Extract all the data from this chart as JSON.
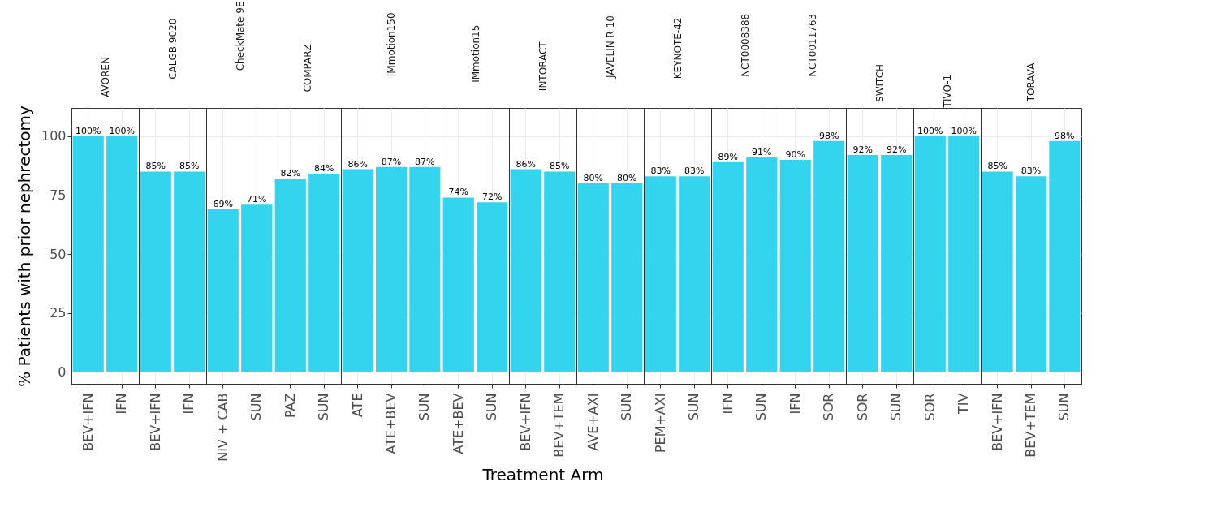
{
  "chart_data": [
    {
      "type": "bar",
      "title": "AVOREN",
      "categories": [
        "BEV+IFN",
        "IFN"
      ],
      "values": [
        100,
        100
      ],
      "value_labels": [
        "100%",
        "100%"
      ],
      "color": "#33d4ee",
      "ylim": [
        -5,
        112
      ],
      "yticks": [
        0,
        25,
        50,
        75,
        100
      ],
      "grid": true,
      "ylabel": "% Patients with prior nephrectomy"
    },
    {
      "type": "bar",
      "title": "CALGB 9020",
      "categories": [
        "BEV+IFN",
        "IFN"
      ],
      "values": [
        85,
        85
      ],
      "value_labels": [
        "85%",
        "85%"
      ],
      "color": "#33d4ee",
      "ylim": [
        -5,
        112
      ],
      "yticks": [
        0,
        25,
        50,
        75,
        100
      ],
      "grid": true,
      "tick_labels": "x"
    },
    {
      "type": "bar",
      "title": "CheckMate 9E",
      "categories": [
        "NIV + CAB",
        "SUN"
      ],
      "values": [
        69,
        71
      ],
      "value_labels": [
        "69%",
        "71%"
      ],
      "color": "#33d4ee",
      "ylim": [
        -5,
        112
      ],
      "yticks": [
        0,
        25,
        50,
        75,
        100
      ],
      "grid": true,
      "tick_labels": "x"
    },
    {
      "type": "bar",
      "title": "COMPARZ",
      "categories": [
        "PAZ",
        "SUN"
      ],
      "values": [
        82,
        84
      ],
      "value_labels": [
        "82%",
        "84%"
      ],
      "color": "#33d4ee",
      "ylim": [
        -5,
        112
      ],
      "yticks": [
        0,
        25,
        50,
        75,
        100
      ],
      "grid": true,
      "tick_labels": "x"
    },
    {
      "type": "bar",
      "title": "IMmotion150",
      "categories": [
        "ATE",
        "ATE+BEV",
        "SUN"
      ],
      "values": [
        86,
        87,
        87
      ],
      "value_labels": [
        "86%",
        "87%",
        "87%"
      ],
      "color": "#33d4ee",
      "ylim": [
        -5,
        112
      ],
      "yticks": [
        0,
        25,
        50,
        75,
        100
      ],
      "grid": true,
      "tick_labels": "x"
    },
    {
      "type": "bar",
      "title": "IMmotion15",
      "categories": [
        "ATE+BEV",
        "SUN"
      ],
      "values": [
        74,
        72
      ],
      "value_labels": [
        "74%",
        "72%"
      ],
      "color": "#33d4ee",
      "ylim": [
        -5,
        112
      ],
      "yticks": [
        0,
        25,
        50,
        75,
        100
      ],
      "grid": true,
      "tick_labels": "x"
    },
    {
      "type": "bar",
      "title": "INTORACT",
      "categories": [
        "BEV+IFN",
        "BEV+TEM"
      ],
      "values": [
        86,
        85
      ],
      "value_labels": [
        "86%",
        "85%"
      ],
      "color": "#33d4ee",
      "ylim": [
        -5,
        112
      ],
      "yticks": [
        0,
        25,
        50,
        75,
        100
      ],
      "grid": true,
      "tick_labels": "x",
      "xlabel": "Treatment Arm"
    },
    {
      "type": "bar",
      "title": "JAVELIN R 10",
      "categories": [
        "AVE+AXI",
        "SUN"
      ],
      "values": [
        80,
        80
      ],
      "value_labels": [
        "80%",
        "80%"
      ],
      "color": "#33d4ee",
      "ylim": [
        -5,
        112
      ],
      "yticks": [
        0,
        25,
        50,
        75,
        100
      ],
      "grid": true,
      "tick_labels": "x"
    },
    {
      "type": "bar",
      "title": "KEYNOTE-42",
      "categories": [
        "PEM+AXI",
        "SUN"
      ],
      "values": [
        83,
        83
      ],
      "value_labels": [
        "83%",
        "83%"
      ],
      "color": "#33d4ee",
      "ylim": [
        -5,
        112
      ],
      "yticks": [
        0,
        25,
        50,
        75,
        100
      ],
      "grid": true,
      "tick_labels": "x"
    },
    {
      "type": "bar",
      "title": "NCT0008388",
      "categories": [
        "IFN",
        "SUN"
      ],
      "values": [
        89,
        91
      ],
      "value_labels": [
        "89%",
        "91%"
      ],
      "color": "#33d4ee",
      "ylim": [
        -5,
        112
      ],
      "yticks": [
        0,
        25,
        50,
        75,
        100
      ],
      "grid": true,
      "tick_labels": "x"
    },
    {
      "type": "bar",
      "title": "NCT0011763",
      "categories": [
        "IFN",
        "SOR"
      ],
      "values": [
        90,
        98
      ],
      "value_labels": [
        "90%",
        "98%"
      ],
      "color": "#33d4ee",
      "ylim": [
        -5,
        112
      ],
      "yticks": [
        0,
        25,
        50,
        75,
        100
      ],
      "grid": true,
      "tick_labels": "x"
    },
    {
      "type": "bar",
      "title": "SWITCH",
      "categories": [
        "SOR",
        "SUN"
      ],
      "values": [
        92,
        92
      ],
      "value_labels": [
        "92%",
        "92%"
      ],
      "color": "#33d4ee",
      "ylim": [
        -5,
        112
      ],
      "yticks": [
        0,
        25,
        50,
        75,
        100
      ],
      "grid": true,
      "tick_labels": "x"
    },
    {
      "type": "bar",
      "title": "TIVO-1",
      "categories": [
        "SOR",
        "TIV"
      ],
      "values": [
        100,
        100
      ],
      "value_labels": [
        "100%",
        "100%"
      ],
      "color": "#33d4ee",
      "ylim": [
        -5,
        112
      ],
      "yticks": [
        0,
        25,
        50,
        75,
        100
      ],
      "grid": true,
      "tick_labels": "x"
    },
    {
      "type": "bar",
      "title": "TORAVA",
      "categories": [
        "BEV+IFN",
        "BEV+TEM",
        "SUN"
      ],
      "values": [
        85,
        83,
        98
      ],
      "value_labels": [
        "85%",
        "83%",
        "98%"
      ],
      "color": "#33d4ee",
      "ylim": [
        -5,
        112
      ],
      "yticks": [
        0,
        25,
        50,
        75,
        100
      ],
      "grid": true,
      "tick_labels": "x"
    }
  ]
}
